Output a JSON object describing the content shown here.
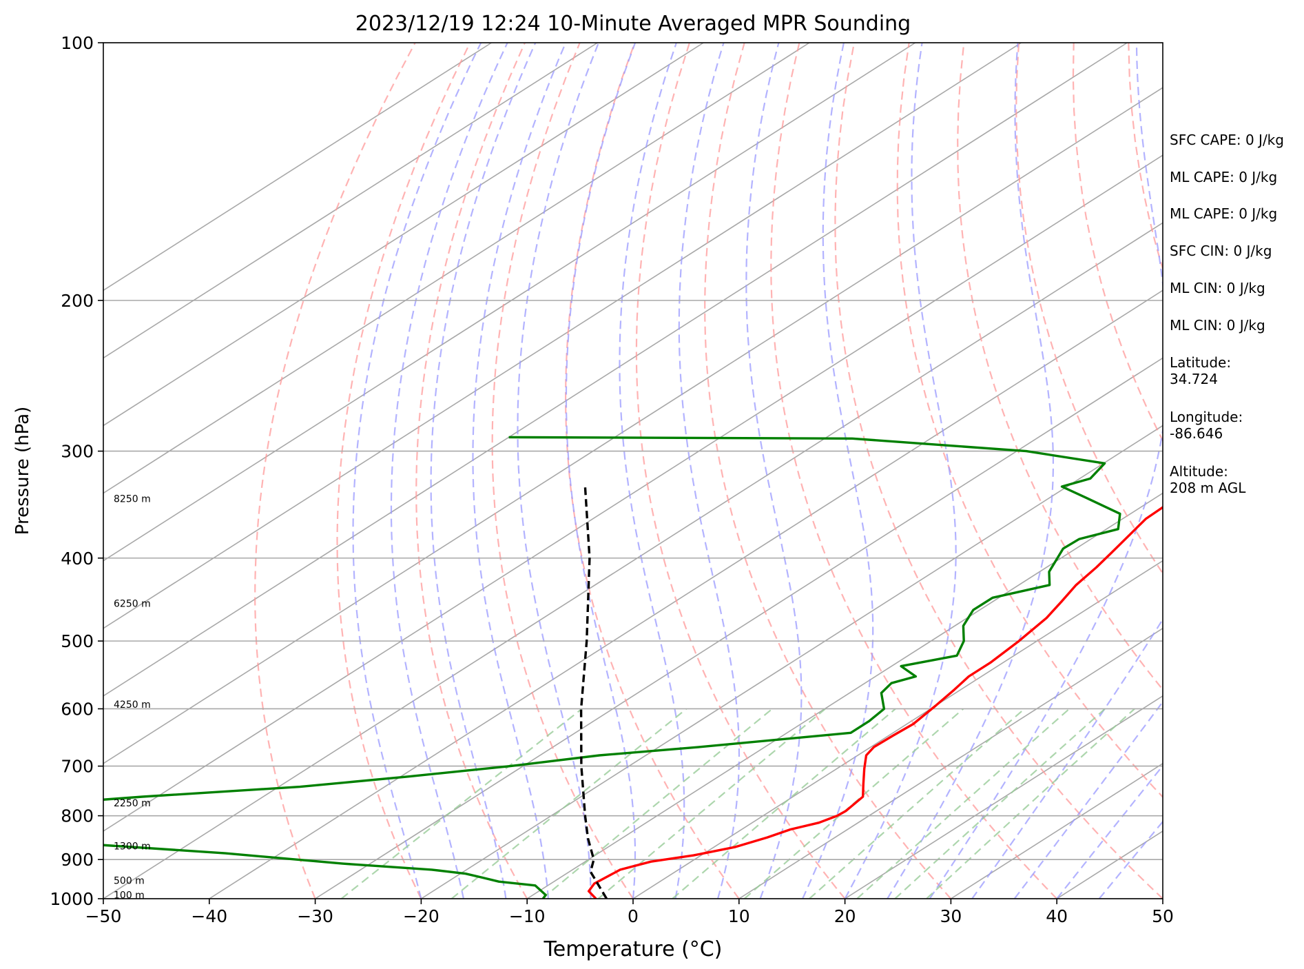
{
  "chart_data": {
    "type": "line",
    "subtype": "skew-t log-p",
    "title": "2023/12/19 12:24 10-Minute Averaged MPR Sounding",
    "xlabel": "Temperature (°C)",
    "ylabel": "Pressure (hPa)",
    "xlim": [
      -50,
      50
    ],
    "ylim": [
      1000,
      100
    ],
    "y_scale": "log",
    "x_ticks": [
      "−50",
      "−40",
      "−30",
      "−20",
      "−10",
      "0",
      "10",
      "20",
      "30",
      "40",
      "50"
    ],
    "y_ticks": [
      100,
      200,
      300,
      400,
      500,
      600,
      700,
      800,
      900,
      1000
    ],
    "grid": true,
    "series": [
      {
        "role": "temperature",
        "color": "#ff0000",
        "points": [
          [
            1000,
            -3.5
          ],
          [
            980,
            -5.3
          ],
          [
            960,
            -5.9
          ],
          [
            925,
            -5.5
          ],
          [
            905,
            -3.8
          ],
          [
            890,
            -0.7
          ],
          [
            870,
            2.0
          ],
          [
            848,
            3.6
          ],
          [
            830,
            4.6
          ],
          [
            815,
            6.3
          ],
          [
            800,
            7.0
          ],
          [
            790,
            7.1
          ],
          [
            760,
            6.6
          ],
          [
            735,
            4.8
          ],
          [
            705,
            2.6
          ],
          [
            680,
            0.8
          ],
          [
            665,
            0.3
          ],
          [
            645,
            0.4
          ],
          [
            625,
            0.6
          ],
          [
            595,
            0.0
          ],
          [
            570,
            -0.6
          ],
          [
            550,
            -1.2
          ],
          [
            530,
            -1.2
          ],
          [
            500,
            -1.7
          ],
          [
            470,
            -2.5
          ],
          [
            450,
            -3.5
          ],
          [
            430,
            -4.6
          ],
          [
            410,
            -5.3
          ],
          [
            395,
            -6.0
          ],
          [
            375,
            -7.0
          ],
          [
            360,
            -7.8
          ],
          [
            340,
            -8.0
          ],
          [
            320,
            -8.6
          ],
          [
            300,
            -9.5
          ],
          [
            285,
            -10.5
          ],
          [
            270,
            -12.3
          ],
          [
            258,
            -13.8
          ]
        ]
      },
      {
        "role": "dewpoint",
        "color": "#008000",
        "points": [
          [
            1000,
            -8.5
          ],
          [
            990,
            -8.8
          ],
          [
            965,
            -11.2
          ],
          [
            955,
            -15.2
          ],
          [
            945,
            -17.3
          ],
          [
            935,
            -19.5
          ],
          [
            925,
            -23.3
          ],
          [
            910,
            -32.6
          ],
          [
            885,
            -45.2
          ],
          [
            865,
            -58.4
          ],
          [
            840,
            -74.9
          ],
          [
            830,
            -75.4
          ],
          [
            820,
            -72.0
          ],
          [
            805,
            -73.9
          ],
          [
            790,
            -71.7
          ],
          [
            780,
            -72.1
          ],
          [
            760,
            -61.4
          ],
          [
            740,
            -48.0
          ],
          [
            720,
            -39.3
          ],
          [
            700,
            -31.2
          ],
          [
            680,
            -24.4
          ],
          [
            665,
            -16.2
          ],
          [
            640,
            -4.0
          ],
          [
            620,
            -4.0
          ],
          [
            600,
            -4.4
          ],
          [
            575,
            -7.0
          ],
          [
            560,
            -7.5
          ],
          [
            550,
            -6.2
          ],
          [
            535,
            -9.1
          ],
          [
            520,
            -5.4
          ],
          [
            500,
            -6.9
          ],
          [
            480,
            -9.2
          ],
          [
            460,
            -10.6
          ],
          [
            445,
            -10.6
          ],
          [
            430,
            -7.1
          ],
          [
            415,
            -9.1
          ],
          [
            390,
            -11.2
          ],
          [
            380,
            -11.1
          ],
          [
            370,
            -8.9
          ],
          [
            355,
            -11.0
          ],
          [
            340,
            -16.6
          ],
          [
            330,
            -20.5
          ],
          [
            323,
            -19.0
          ],
          [
            310,
            -19.9
          ],
          [
            300,
            -29.1
          ],
          [
            290,
            -47.4
          ],
          [
            289,
            -80.0
          ]
        ]
      },
      {
        "role": "parcel",
        "color": "#000000",
        "style": "dashed",
        "points": [
          [
            1000,
            -2.5
          ],
          [
            930,
            -8.0
          ],
          [
            900,
            -9.5
          ],
          [
            850,
            -13.2
          ],
          [
            800,
            -16.8
          ],
          [
            700,
            -24.5
          ],
          [
            600,
            -33.0
          ],
          [
            500,
            -42.5
          ],
          [
            400,
            -54.5
          ],
          [
            330,
            -65.5
          ]
        ]
      }
    ],
    "height_labels": [
      {
        "text": "100 m",
        "p": 990
      },
      {
        "text": "500 m",
        "p": 952
      },
      {
        "text": "1300 m",
        "p": 868
      },
      {
        "text": "2250 m",
        "p": 773
      },
      {
        "text": "4250 m",
        "p": 593
      },
      {
        "text": "6250 m",
        "p": 452
      },
      {
        "text": "8250 m",
        "p": 341
      }
    ]
  },
  "stats": {
    "sfc_cape": "SFC CAPE: 0 J/kg",
    "ml_cape_1": "ML CAPE: 0 J/kg",
    "ml_cape_2": "ML CAPE: 0 J/kg",
    "sfc_cin": "SFC CIN: 0 J/kg",
    "ml_cin_1": "ML CIN: 0 J/kg",
    "ml_cin_2": "ML CIN: 0 J/kg",
    "latitude_label": "Latitude:",
    "latitude_value": "34.724",
    "longitude_label": "Longitude:",
    "longitude_value": "-86.646",
    "altitude_label": "Altitude:",
    "altitude_value": "208 m AGL"
  },
  "colors": {
    "isotherm": "#a8a8a8",
    "dry_adiabat": "#ff9999",
    "moist_adiabat": "#9999ff",
    "mixing_ratio": "#99cc99"
  }
}
